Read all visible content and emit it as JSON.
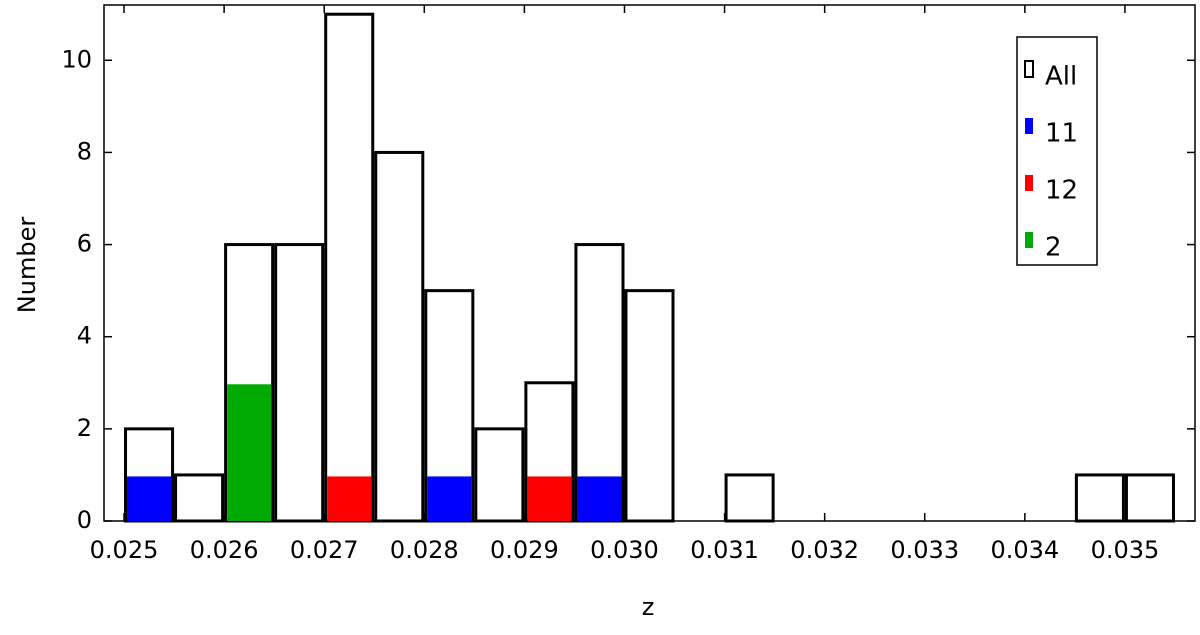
{
  "chart_data": {
    "type": "histogram",
    "x_label": "z",
    "y_label": "Number",
    "bins": [
      0.025,
      0.0255,
      0.026,
      0.0265,
      0.027,
      0.0275,
      0.028,
      0.0285,
      0.029,
      0.0295,
      0.03,
      0.0305,
      0.031,
      0.0315,
      0.032,
      0.0325,
      0.033,
      0.0335,
      0.034,
      0.0345,
      0.035,
      0.0355
    ],
    "series": [
      {
        "name": "All",
        "color": "#ffffff",
        "values": [
          2,
          1,
          6,
          6,
          11,
          8,
          5,
          2,
          3,
          6,
          5,
          0,
          1,
          0,
          0,
          0,
          0,
          0,
          0,
          1,
          1
        ]
      },
      {
        "name": "11",
        "color": "#0000ff",
        "values": [
          1,
          0,
          0,
          0,
          0,
          0,
          1,
          0,
          0,
          1,
          0,
          0,
          0,
          0,
          0,
          0,
          0,
          0,
          0,
          0,
          0
        ]
      },
      {
        "name": "12",
        "color": "#ff0000",
        "values": [
          0,
          0,
          0,
          0,
          1,
          0,
          0,
          0,
          1,
          0,
          0,
          0,
          0,
          0,
          0,
          0,
          0,
          0,
          0,
          0,
          0
        ]
      },
      {
        "name": "2",
        "color": "#00aa00",
        "values": [
          0,
          0,
          3,
          0,
          0,
          0,
          0,
          0,
          0,
          0,
          0,
          0,
          0,
          0,
          0,
          0,
          0,
          0,
          0,
          0,
          0
        ]
      }
    ],
    "xlim": [
      0.0248,
      0.0357
    ],
    "ylim": [
      0,
      11.2
    ],
    "xticks": [
      0.025,
      0.026,
      0.027,
      0.028,
      0.029,
      {
        "value": 0.03,
        "label": "0.030"
      },
      0.031,
      0.032,
      0.033,
      0.034,
      0.035
    ],
    "yticks": [
      0,
      2,
      4,
      6,
      8,
      10
    ],
    "legend": "upper right"
  }
}
